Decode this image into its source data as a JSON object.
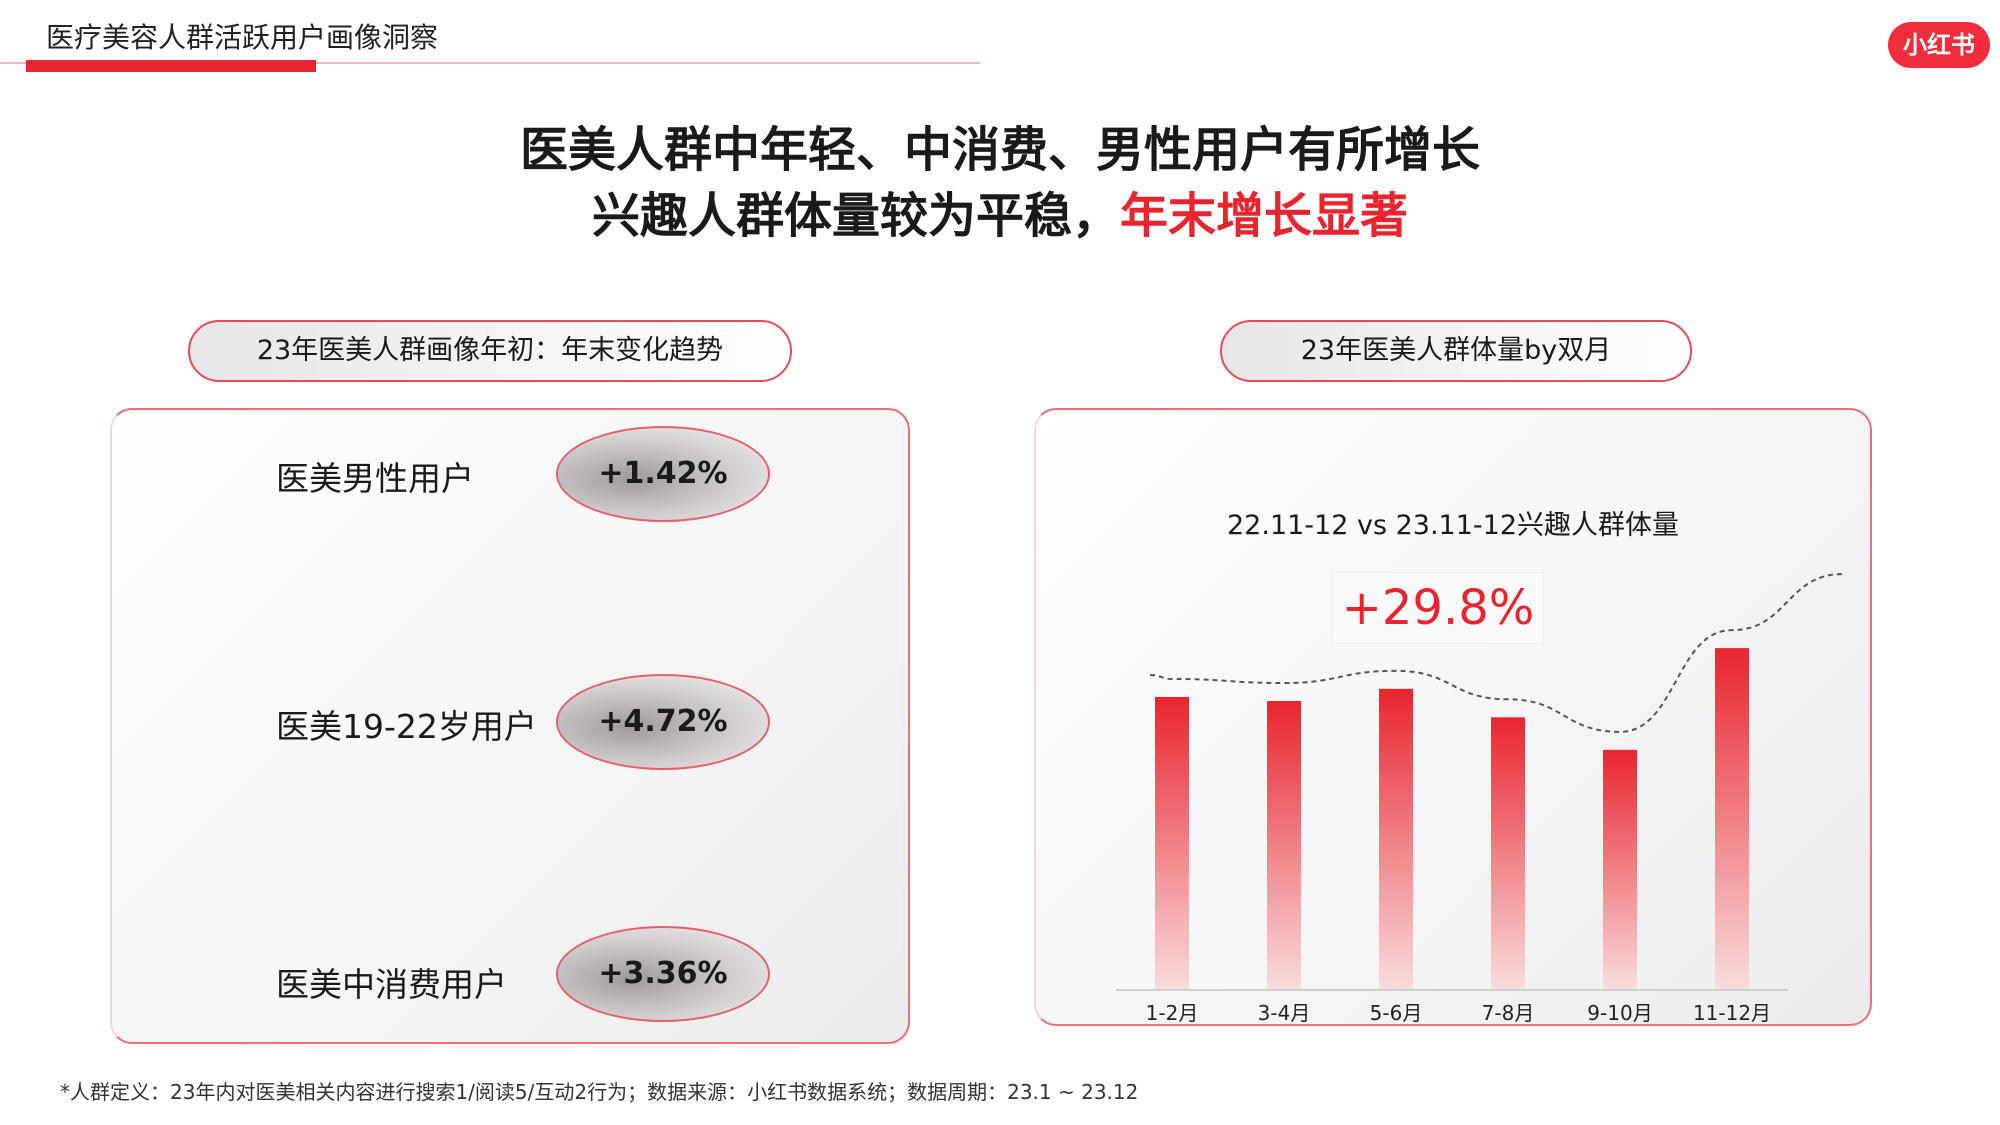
{
  "header": {
    "section_title": "医疗美容人群活跃用户画像洞察",
    "logo_text": "小红书"
  },
  "headline": {
    "line1": "医美人群中年轻、中消费、男性用户有所增长",
    "line2_prefix": "兴趣人群体量较为平稳，",
    "line2_accent": "年末增长显著"
  },
  "left_panel": {
    "pill_title": "23年医美人群画像年初：年末变化趋势",
    "segments": [
      {
        "label": "医美男性用户",
        "change": "+1.42%"
      },
      {
        "label": "医美19-22岁用户",
        "change": "+4.72%"
      },
      {
        "label": "医美中消费用户",
        "change": "+3.36%"
      }
    ]
  },
  "right_panel": {
    "pill_title": "23年医美人群体量by双月",
    "subtitle": "22.11-12 vs 23.11-12兴趣人群体量",
    "highlight": "+29.8%"
  },
  "chart_data": {
    "type": "bar",
    "categories": [
      "1-2月",
      "3-4月",
      "5-6月",
      "7-8月",
      "9-10月",
      "11-12月"
    ],
    "values": [
      72,
      71,
      74,
      67,
      59,
      84
    ],
    "ylim": [
      0,
      100
    ],
    "trend_line": "dashed",
    "grid": false,
    "colors": {
      "bar_top": "#e8252f",
      "bar_bottom": "#f8dcdc",
      "trend": "#555555"
    }
  },
  "footnote": "*人群定义：23年内对医美相关内容进行搜索1/阅读5/互动2行为；数据来源：小红书数据系统；数据周期：23.1 ~ 23.12"
}
